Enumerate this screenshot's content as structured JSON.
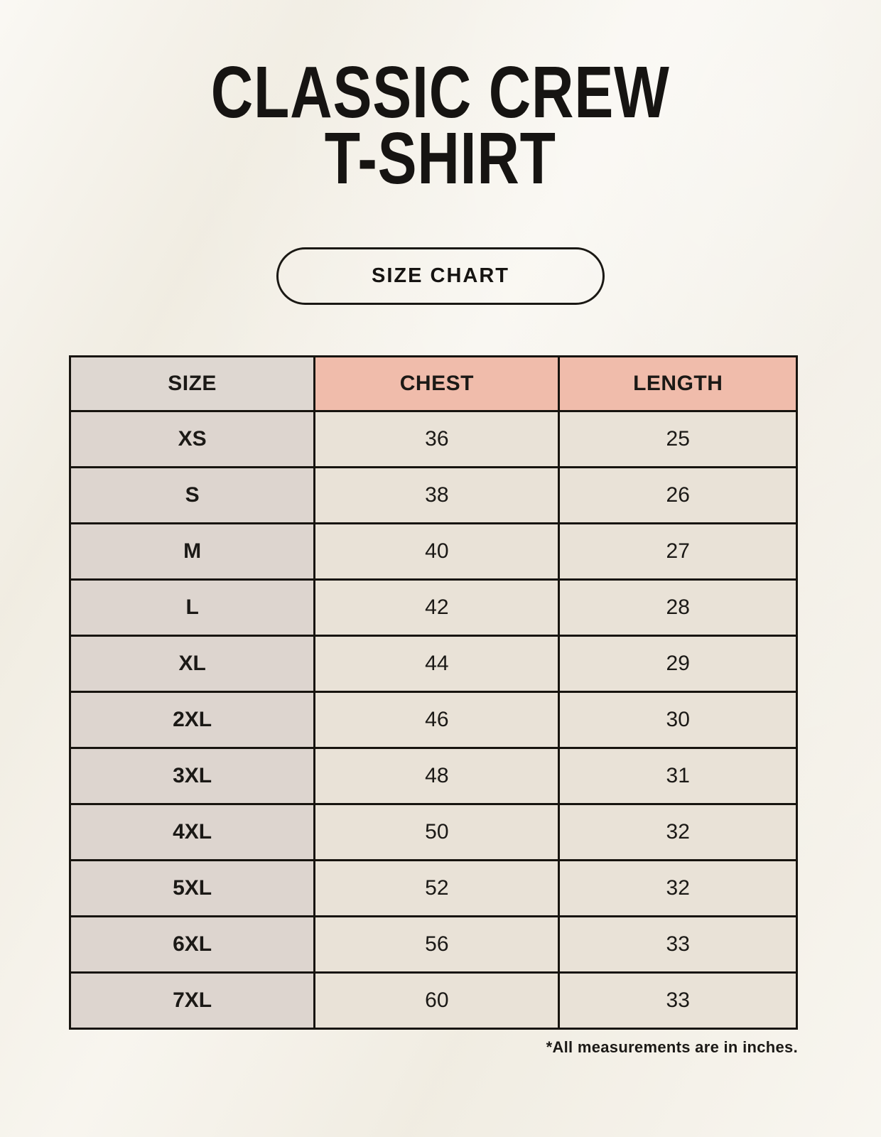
{
  "page": {
    "title_line1": "CLASSIC CREW",
    "title_line2": "T-SHIRT",
    "button_label": "SIZE CHART",
    "footnote": "*All measurements are in inches."
  },
  "table": {
    "columns": [
      "SIZE",
      "CHEST",
      "LENGTH"
    ],
    "rows": [
      [
        "XS",
        "36",
        "25"
      ],
      [
        "S",
        "38",
        "26"
      ],
      [
        "M",
        "40",
        "27"
      ],
      [
        "L",
        "42",
        "28"
      ],
      [
        "XL",
        "44",
        "29"
      ],
      [
        "2XL",
        "46",
        "30"
      ],
      [
        "3XL",
        "48",
        "31"
      ],
      [
        "4XL",
        "50",
        "32"
      ],
      [
        "5XL",
        "52",
        "32"
      ],
      [
        "6XL",
        "56",
        "33"
      ],
      [
        "7XL",
        "60",
        "33"
      ]
    ],
    "units": "inches"
  },
  "colors": {
    "background": "#f4f0e6",
    "accent_salmon": "#f0bcab",
    "header_gray": "#ded7d1",
    "cell_cream": "#e9e2d7",
    "border": "#17140f",
    "text": "#1b1916"
  }
}
